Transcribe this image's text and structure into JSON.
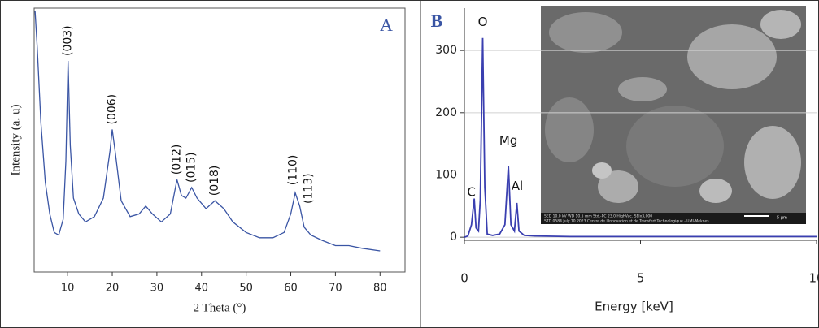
{
  "chart_data": [
    {
      "type": "line",
      "panel_label": "A",
      "xlabel": "2 Theta (°)",
      "ylabel": "Intensity (a. u)",
      "color": "#3a55a4",
      "x": [
        2.7,
        3.2,
        4,
        5,
        6,
        7,
        8,
        9,
        9.6,
        10.1,
        10.6,
        11.3,
        12.5,
        14,
        16,
        18,
        19.5,
        20,
        20.7,
        22,
        24,
        26,
        27.5,
        29,
        31,
        33,
        34.5,
        35.5,
        36.5,
        37.8,
        39,
        41,
        43,
        45,
        47,
        50,
        53,
        56,
        58.5,
        60,
        61,
        62,
        63,
        64.5,
        67,
        70,
        73,
        76,
        80
      ],
      "values": [
        99,
        85,
        57,
        34,
        22,
        15,
        14,
        20,
        42,
        80,
        48,
        28,
        22,
        19,
        21,
        28,
        46,
        54,
        45,
        27,
        21,
        22,
        25,
        22,
        19,
        22,
        35,
        29,
        28,
        32,
        28,
        24,
        27,
        24,
        19,
        15,
        13,
        13,
        15,
        22,
        30,
        25,
        17,
        14,
        12,
        10,
        10,
        9,
        8
      ],
      "xlim": [
        2.5,
        85.6
      ],
      "ylim": [
        0,
        100
      ],
      "xticks": [
        10,
        20,
        30,
        40,
        50,
        60,
        70,
        80
      ],
      "annotations": [
        {
          "text": "(003)",
          "x": 10.1,
          "y": 80
        },
        {
          "text": "(006)",
          "x": 20,
          "y": 54
        },
        {
          "text": "(012)",
          "x": 34.5,
          "y": 35
        },
        {
          "text": "(015)",
          "x": 37.8,
          "y": 32
        },
        {
          "text": "(018)",
          "x": 43,
          "y": 27
        },
        {
          "text": "(110)",
          "x": 60.5,
          "y": 31
        },
        {
          "text": "(113)",
          "x": 64,
          "y": 24
        }
      ]
    },
    {
      "type": "line",
      "panel_label": "B",
      "xlabel": "Energy [keV]",
      "color": "#3a3fb0",
      "grid": true,
      "x": [
        0,
        0.1,
        0.2,
        0.28,
        0.33,
        0.4,
        0.45,
        0.52,
        0.58,
        0.65,
        0.8,
        1.0,
        1.15,
        1.25,
        1.32,
        1.42,
        1.49,
        1.55,
        1.7,
        2.0,
        3,
        4,
        5,
        6,
        7,
        8,
        9,
        10
      ],
      "values": [
        0,
        2,
        20,
        62,
        15,
        10,
        60,
        320,
        80,
        5,
        3,
        5,
        20,
        115,
        20,
        10,
        55,
        10,
        3,
        2,
        1,
        1,
        1,
        1,
        1,
        1,
        1,
        1
      ],
      "xlim": [
        0,
        10
      ],
      "ylim": [
        -5,
        368
      ],
      "xticks": [
        0,
        5,
        10
      ],
      "yticks": [
        0,
        100,
        200,
        300
      ],
      "annotations": [
        {
          "text": "C",
          "x": 0.2,
          "y": 72
        },
        {
          "text": "O",
          "x": 0.52,
          "y": 345
        },
        {
          "text": "Mg",
          "x": 1.25,
          "y": 155
        },
        {
          "text": "Al",
          "x": 1.5,
          "y": 82
        }
      ],
      "inset_text": [
        "SED 10.0 kV WD 10.5 mm Std.-PC 23.0 HighVac. SEIx3,000",
        "STD 0584 July 10 2023 Centre de l'Innovation et de Transfert Technologique - UMI-Meknes",
        "5 µm"
      ]
    }
  ]
}
